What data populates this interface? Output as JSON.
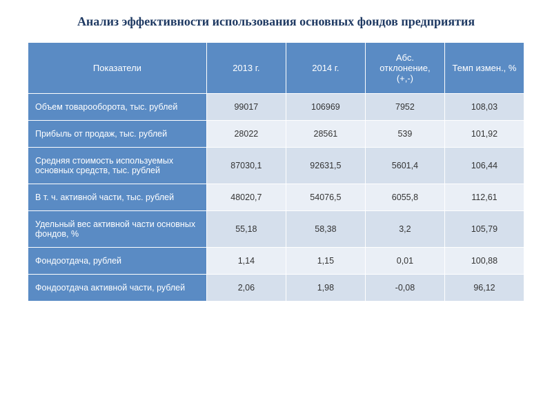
{
  "title": "Анализ эффективности использования основных фондов предприятия",
  "table": {
    "type": "table",
    "header_bg": "#5a8bc4",
    "header_fg": "#ffffff",
    "label_col_bg": "#5a8bc4",
    "label_col_fg": "#ffffff",
    "row_odd_bg": "#d5dfec",
    "row_even_bg": "#eaeff6",
    "cell_fg": "#333333",
    "border_color": "#ffffff",
    "header_fontsize": 13,
    "cell_fontsize": 12.5,
    "columns": [
      "Показатели",
      "2013 г.",
      "2014 г.",
      "Абс. отклонение, (+,-)",
      "Темп измен., %"
    ],
    "column_widths_pct": [
      36,
      16,
      16,
      16,
      16
    ],
    "rows": [
      {
        "label": "Объем товарооборота, тыс. рублей",
        "v2013": "99017",
        "v2014": "106969",
        "abs": "7952",
        "tempo": "108,03"
      },
      {
        "label": "Прибыль от продаж, тыс. рублей",
        "v2013": "28022",
        "v2014": "28561",
        "abs": "539",
        "tempo": "101,92"
      },
      {
        "label": "Средняя стоимость используемых основных средств, тыс. рублей",
        "v2013": "87030,1",
        "v2014": "92631,5",
        "abs": "5601,4",
        "tempo": "106,44"
      },
      {
        "label": "В т. ч. активной части, тыс. рублей",
        "v2013": "48020,7",
        "v2014": "54076,5",
        "abs": "6055,8",
        "tempo": "112,61"
      },
      {
        "label": "Удельный вес активной части основных фондов, %",
        "v2013": "55,18",
        "v2014": "58,38",
        "abs": "3,2",
        "tempo": "105,79"
      },
      {
        "label": "Фондоотдача, рублей",
        "v2013": "1,14",
        "v2014": "1,15",
        "abs": "0,01",
        "tempo": "100,88"
      },
      {
        "label": "Фондоотдача активной части, рублей",
        "v2013": "2,06",
        "v2014": "1,98",
        "abs": "-0,08",
        "tempo": "96,12"
      }
    ]
  },
  "title_color": "#1f3a63",
  "title_fontsize": 18,
  "background_color": "#ffffff"
}
